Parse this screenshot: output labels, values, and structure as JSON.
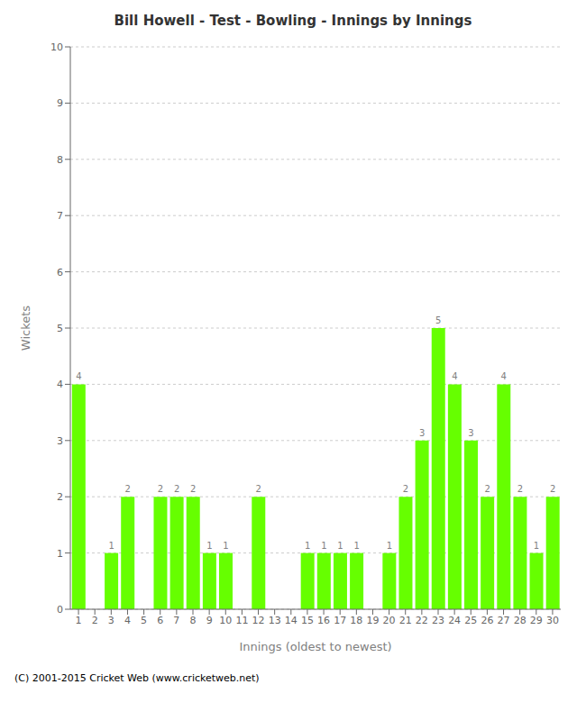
{
  "chart_data": {
    "type": "bar",
    "title": "Bill Howell - Test - Bowling - Innings by Innings",
    "xlabel": "Innings (oldest to newest)",
    "ylabel": "Wickets",
    "annotations": [
      "(C) 2001-2015 Cricket Web (www.cricketweb.net)"
    ],
    "categories": [
      "1",
      "2",
      "3",
      "4",
      "5",
      "6",
      "7",
      "8",
      "9",
      "10",
      "11",
      "12",
      "13",
      "14",
      "15",
      "16",
      "17",
      "18",
      "19",
      "20",
      "21",
      "22",
      "23",
      "24",
      "25",
      "26",
      "27",
      "28",
      "29",
      "30"
    ],
    "values": [
      4,
      0,
      1,
      2,
      0,
      2,
      2,
      2,
      1,
      1,
      0,
      2,
      0,
      0,
      1,
      1,
      1,
      1,
      0,
      1,
      2,
      3,
      5,
      4,
      3,
      2,
      4,
      2,
      1,
      2
    ],
    "color": "#66ff00",
    "ylim": [
      0,
      10
    ],
    "yticks": [
      0,
      1,
      2,
      3,
      4,
      5,
      6,
      7,
      8,
      9,
      10
    ],
    "grid": true,
    "data_labels": true
  }
}
